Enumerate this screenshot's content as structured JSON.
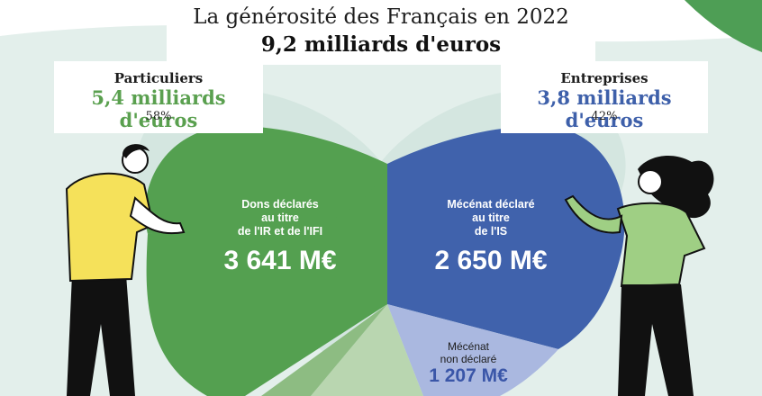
{
  "header": {
    "title": "La générosité des Français en 2022",
    "total": "9,2 milliards d'euros"
  },
  "particuliers": {
    "title": "Particuliers",
    "amount": "5,4 milliards d'euros",
    "percent": "58%",
    "color": "#5aa04f"
  },
  "entreprises": {
    "title": "Entreprises",
    "amount": "3,8 milliards d'euros",
    "percent": "42%",
    "color": "#3e60aa"
  },
  "segments": {
    "dons": {
      "line1": "Dons déclarés",
      "line2": "au titre",
      "line3": "de l'IR et de l'IFI",
      "value": "3 641 M€",
      "color": "#54a050"
    },
    "mecenat_declare": {
      "line1": "Mécénat déclaré",
      "line2": "au titre",
      "line3": "de l'IS",
      "value": "2 650 M€",
      "color": "#4062ac"
    },
    "mecenat_non_declare": {
      "line1": "Mécénat",
      "line2": "non déclaré",
      "value": "1 207 M€",
      "color": "#aab8e0"
    }
  },
  "background": {
    "panel": "#e3efeb",
    "corner": "#4e9e55"
  }
}
